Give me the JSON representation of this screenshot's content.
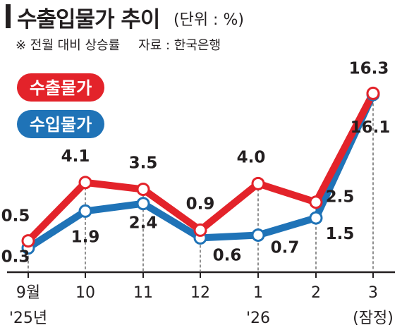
{
  "header": {
    "title": "수출입물가 추이",
    "unit": "(단위 : %)",
    "note": "※ 전월 대비 상승률",
    "source": "자료 : 한국은행"
  },
  "colors": {
    "export": "#e3232a",
    "import": "#1f73b7",
    "text": "#231f20",
    "guide": "#555555"
  },
  "chart_data": {
    "type": "line",
    "categories": [
      "9월",
      "10",
      "11",
      "12",
      "1",
      "2",
      "3"
    ],
    "sub_labels": [
      "'25년",
      "",
      "",
      "",
      "'26",
      "",
      "(잠정)"
    ],
    "series": [
      {
        "name": "수출물가",
        "values": [
          0.5,
          4.1,
          3.5,
          0.9,
          4.0,
          2.5,
          16.3
        ]
      },
      {
        "name": "수입물가",
        "values": [
          0.3,
          1.9,
          2.4,
          0.6,
          0.7,
          1.5,
          16.1
        ]
      }
    ],
    "legend_position": "top-left",
    "grid": false
  }
}
